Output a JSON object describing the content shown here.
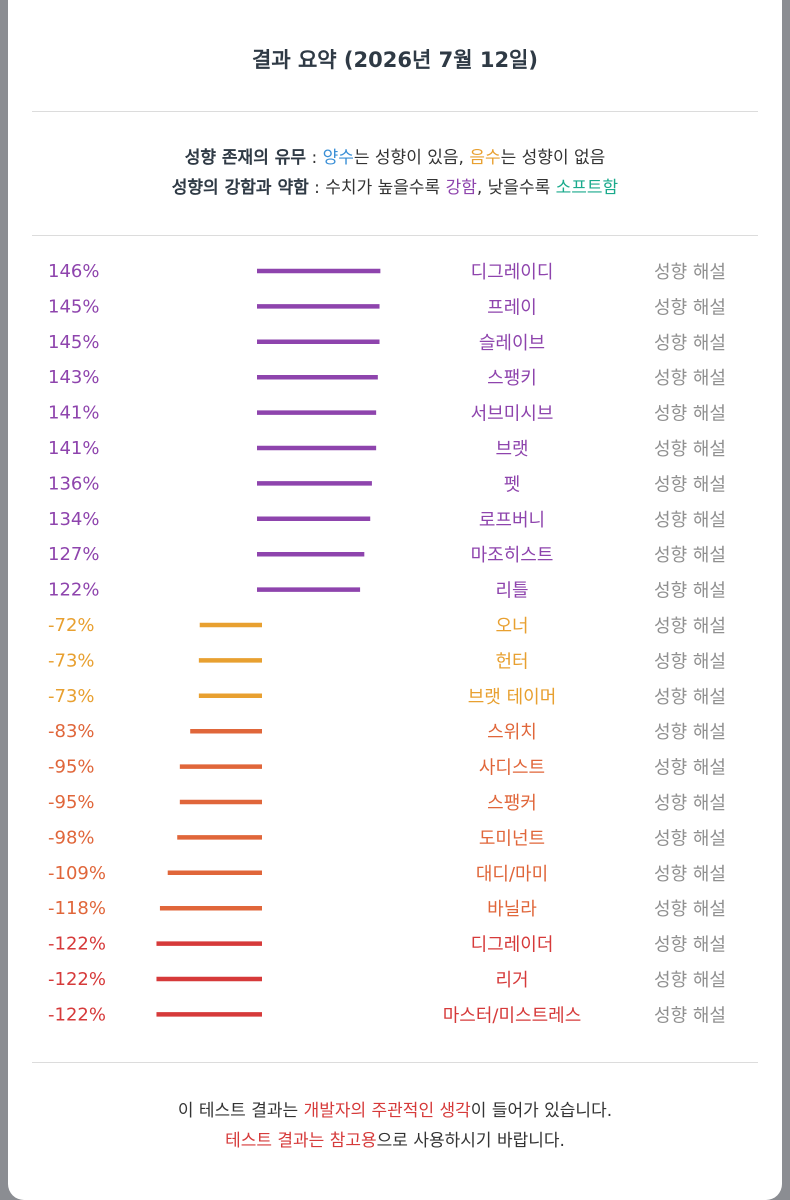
{
  "header": {
    "title": "결과 요약 (2026년 7월 12일)"
  },
  "legend": {
    "line1": {
      "label": "성향 존재의 유무",
      "sep": " : ",
      "pos_word": "양수",
      "pos_rest": "는 성향이 있음, ",
      "neg_word": "음수",
      "neg_rest": "는 성향이 없음"
    },
    "line2": {
      "label": "성향의 강함과 약함",
      "sep": " : 수치가 높을수록 ",
      "strong_word": "강함",
      "mid": ", 낮을수록 ",
      "soft_word": "소프트함"
    }
  },
  "colors": {
    "positive": "#8e44ad",
    "orange": "#e8a030",
    "orange_red": "#e0663a",
    "red": "#d63a3a",
    "blue": "#3a8fd6",
    "teal": "#1aaa8c",
    "gray_link": "#909090"
  },
  "chart_data": {
    "type": "bar",
    "orientation": "horizontal",
    "unit": "%",
    "link_text": "성향 해설",
    "categories": [
      "디그레이디",
      "프레이",
      "슬레이브",
      "스팽키",
      "서브미시브",
      "브랫",
      "펫",
      "로프버니",
      "마조히스트",
      "리틀",
      "오너",
      "헌터",
      "브랫 테이머",
      "스위치",
      "사디스트",
      "스팽커",
      "도미넌트",
      "대디/마미",
      "바닐라",
      "디그레이더",
      "리거",
      "마스터/미스트레스"
    ],
    "values": [
      146,
      145,
      145,
      143,
      141,
      141,
      136,
      134,
      127,
      122,
      -72,
      -73,
      -73,
      -83,
      -95,
      -95,
      -98,
      -109,
      -118,
      -122,
      -122,
      -122
    ],
    "value_labels": [
      "146%",
      "145%",
      "145%",
      "143%",
      "141%",
      "141%",
      "136%",
      "134%",
      "127%",
      "122%",
      "-72%",
      "-73%",
      "-73%",
      "-83%",
      "-95%",
      "-95%",
      "-98%",
      "-109%",
      "-118%",
      "-122%",
      "-122%",
      "-122%"
    ],
    "color_groups": [
      "positive",
      "positive",
      "positive",
      "positive",
      "positive",
      "positive",
      "positive",
      "positive",
      "positive",
      "positive",
      "orange",
      "orange",
      "orange",
      "orange_red",
      "orange_red",
      "orange_red",
      "orange_red",
      "orange_red",
      "orange_red",
      "red",
      "red",
      "red"
    ]
  },
  "footer": {
    "line1": {
      "pre": "이 테스트 결과는 ",
      "emph": "개발자의 주관적인 생각",
      "post": "이 들어가 있습니다."
    },
    "line2": {
      "emph1": "테스트 결과는 ",
      "emph2": "참고용",
      "post": "으로 사용하시기 바랍니다."
    }
  }
}
